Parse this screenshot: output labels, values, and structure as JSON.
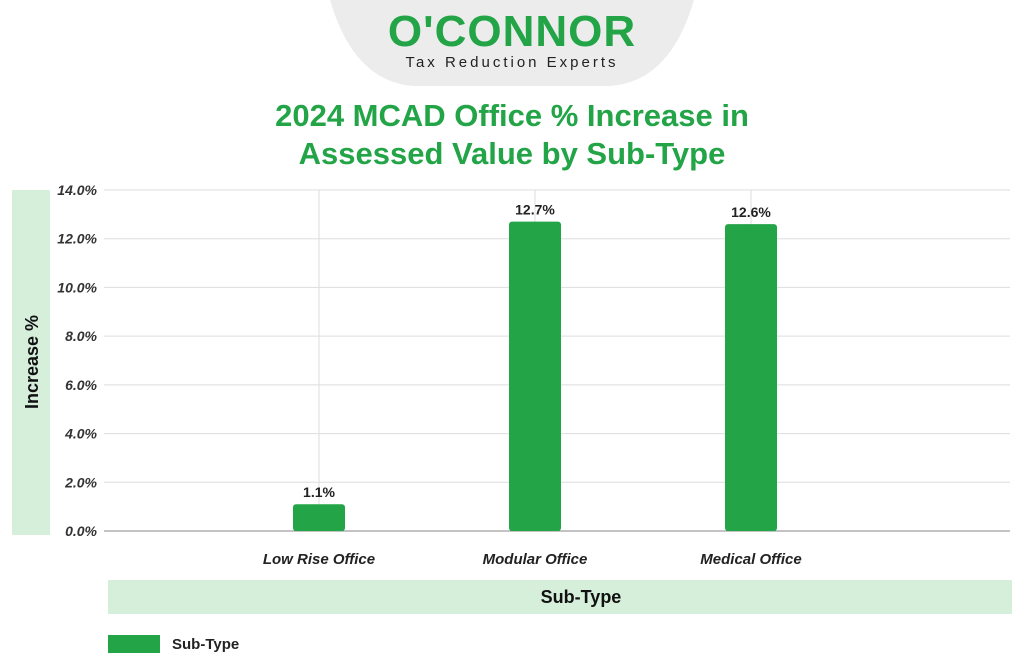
{
  "logo": {
    "wordmark": "O'CONNOR",
    "tagline": "Tax Reduction Experts"
  },
  "colors": {
    "brand_green": "#22a447",
    "bar": "#22a447",
    "band_fill": "#d5efdb",
    "grid": "#dddddd",
    "logo_tab": "#ececec"
  },
  "chart_data": {
    "type": "bar",
    "title": "2024 MCAD Office % Increase in Assessed Value by Sub-Type",
    "title_lines": [
      "2024 MCAD Office % Increase in",
      "Assessed Value by Sub-Type"
    ],
    "xlabel": "Sub-Type",
    "ylabel": "Increase %",
    "categories": [
      "Low Rise Office",
      "Modular Office",
      "Medical Office"
    ],
    "series": [
      {
        "name": "Sub-Type",
        "values": [
          1.1,
          12.7,
          12.6
        ],
        "data_labels": [
          "1.1%",
          "12.7%",
          "12.6%"
        ]
      }
    ],
    "ylim": [
      0,
      14
    ],
    "yticks": [
      "0.0%",
      "2.0%",
      "4.0%",
      "6.0%",
      "8.0%",
      "10.0%",
      "12.0%",
      "14.0%"
    ],
    "grid": true,
    "legend_position": "bottom-left"
  }
}
